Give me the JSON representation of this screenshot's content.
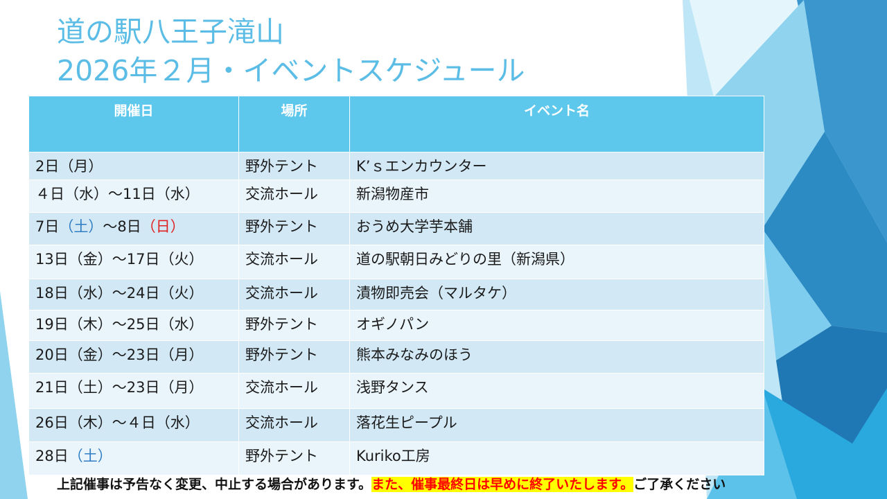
{
  "title": {
    "line1": "道の駅八王子滝山",
    "line2": "2026年２月・イベントスケジュール"
  },
  "table": {
    "headers": [
      "開催日",
      "場所",
      "イベント名"
    ],
    "rows": [
      {
        "date_parts": [
          {
            "t": "2日（月）"
          }
        ],
        "place": "野外テント",
        "event": "K’ｓエンカウンター"
      },
      {
        "date_parts": [
          {
            "t": "４日（水）～11日（水）"
          }
        ],
        "place": "交流ホール",
        "event": "新潟物産市"
      },
      {
        "date_parts": [
          {
            "t": "7日"
          },
          {
            "t": "（土）",
            "c": "sat"
          },
          {
            "t": "～8日"
          },
          {
            "t": "（日）",
            "c": "sun"
          }
        ],
        "place": "野外テント",
        "event": "おうめ大学芋本舗"
      },
      {
        "date_parts": [
          {
            "t": "13日（金）～17日（火）"
          }
        ],
        "place": "交流ホール",
        "event": "道の駅朝日みどりの里（新潟県）"
      },
      {
        "date_parts": [
          {
            "t": "18日（水）～24日（火）"
          }
        ],
        "place": "交流ホール",
        "event": "漬物即売会（マルタケ）"
      },
      {
        "date_parts": [
          {
            "t": "19日（木）～25日（水）"
          }
        ],
        "place": "野外テント",
        "event": "オギノパン"
      },
      {
        "date_parts": [
          {
            "t": "20日（金）～23日（月）"
          }
        ],
        "place": "野外テント",
        "event": "熊本みなみのほう"
      },
      {
        "date_parts": [
          {
            "t": "21日（土）～23日（月）"
          }
        ],
        "place": "交流ホール",
        "event": "浅野タンス"
      },
      {
        "date_parts": [
          {
            "t": "26日（木）～４日（水）"
          }
        ],
        "place": "交流ホール",
        "event": "落花生ピープル"
      },
      {
        "date_parts": [
          {
            "t": "28日"
          },
          {
            "t": "（土）",
            "c": "sat"
          }
        ],
        "place": "野外テント",
        "event": "Kuriko工房"
      }
    ]
  },
  "footer": {
    "part1": "上記催事は予告なく変更、中止する場合があります。",
    "highlight": "また、催事最終日は早めに終了いたします。",
    "part2": "ご了承ください"
  },
  "colors": {
    "title": "#5bbde6",
    "header_bg": "#5ec8ec",
    "row_odd": "#d2e8f5",
    "row_even": "#e9f4fb",
    "saturday": "#2e7cc4",
    "sunday": "#e02020",
    "highlight_bg": "#ffff00",
    "highlight_text": "#ff0000"
  }
}
